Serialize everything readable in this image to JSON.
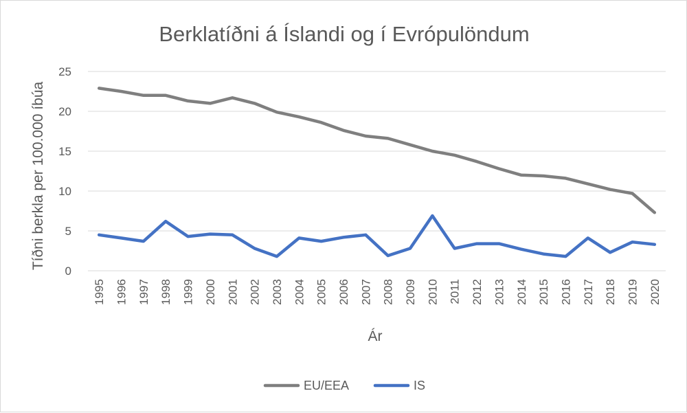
{
  "chart_data": {
    "type": "line",
    "title": "Berklatíðni á Íslandi og í Evrópulöndum",
    "xlabel": "Ár",
    "ylabel": "Tíðni berkla per 100.000 íbúa",
    "ylim": [
      0,
      25
    ],
    "yticks": [
      "0",
      "5",
      "10",
      "15",
      "20",
      "25"
    ],
    "grid": "horizontal",
    "legend_position": "bottom",
    "x": [
      "1995",
      "1996",
      "1997",
      "1998",
      "1999",
      "2000",
      "2001",
      "2002",
      "2003",
      "2004",
      "2005",
      "2006",
      "2007",
      "2008",
      "2009",
      "2010",
      "2011",
      "2012",
      "2013",
      "2014",
      "2015",
      "2016",
      "2017",
      "2018",
      "2019",
      "2020"
    ],
    "series": [
      {
        "name": "EU/EEA",
        "color": "#7f7f7f",
        "values": [
          22.9,
          22.5,
          22.0,
          22.0,
          21.3,
          21.0,
          21.7,
          21.0,
          19.9,
          19.3,
          18.6,
          17.6,
          16.9,
          16.6,
          15.8,
          15.0,
          14.5,
          13.7,
          12.8,
          12.0,
          11.9,
          11.6,
          10.9,
          10.2,
          9.7,
          7.3
        ]
      },
      {
        "name": "IS",
        "color": "#4472c4",
        "values": [
          4.5,
          4.1,
          3.7,
          6.2,
          4.3,
          4.6,
          4.5,
          2.8,
          1.8,
          4.1,
          3.7,
          4.2,
          4.5,
          1.9,
          2.8,
          6.9,
          2.8,
          3.4,
          3.4,
          2.7,
          2.1,
          1.8,
          4.1,
          2.3,
          3.6,
          3.3
        ]
      }
    ]
  }
}
